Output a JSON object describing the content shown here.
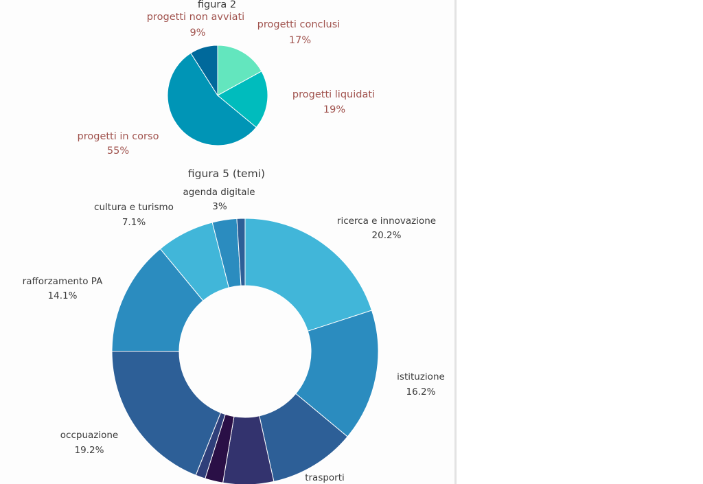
{
  "chart_data": [
    {
      "type": "pie",
      "title": "figura 2",
      "slices": [
        {
          "label": "progetti conclusi",
          "value": 17,
          "display": "17%",
          "color": "#63e6be"
        },
        {
          "label": "progetti liquidati",
          "value": 19,
          "display": "19%",
          "color": "#00bcbd"
        },
        {
          "label": "progetti in corso",
          "value": 55,
          "display": "55%",
          "color": "#0095b6"
        },
        {
          "label": "progetti non avviati",
          "value": 9,
          "display": "9%",
          "color": "#00699b"
        }
      ]
    },
    {
      "type": "pie",
      "subtype": "donut",
      "title": "figura 5 (temi)",
      "slices": [
        {
          "label": "ricerca e innovazione",
          "value": 20.2,
          "display": "20.2%",
          "color": "#41b6d9"
        },
        {
          "label": "istituzione",
          "value": 16.2,
          "display": "16.2%",
          "color": "#2b8cbf"
        },
        {
          "label": "trasporti",
          "value": 10.6,
          "display": "",
          "color": "#2d5f97"
        },
        {
          "label": "",
          "value": 6.2,
          "display": "",
          "color": "#33336e"
        },
        {
          "label": "",
          "value": 2.2,
          "display": "",
          "color": "#2a0f46"
        },
        {
          "label": "",
          "value": 1.2,
          "display": "",
          "color": "#2f3f7a"
        },
        {
          "label": "occpuazione",
          "value": 19.2,
          "display": "19.2%",
          "color": "#2d5f97"
        },
        {
          "label": "rafforzamento PA",
          "value": 14.1,
          "display": "14.1%",
          "color": "#2b8cbf"
        },
        {
          "label": "cultura e turismo",
          "value": 7.1,
          "display": "7.1%",
          "color": "#41b6d9"
        },
        {
          "label": "agenda digitale",
          "value": 3,
          "display": "3%",
          "color": "#2b8cbf"
        },
        {
          "label": "",
          "value": 1.0,
          "display": "",
          "color": "#2d5f97"
        }
      ]
    }
  ]
}
